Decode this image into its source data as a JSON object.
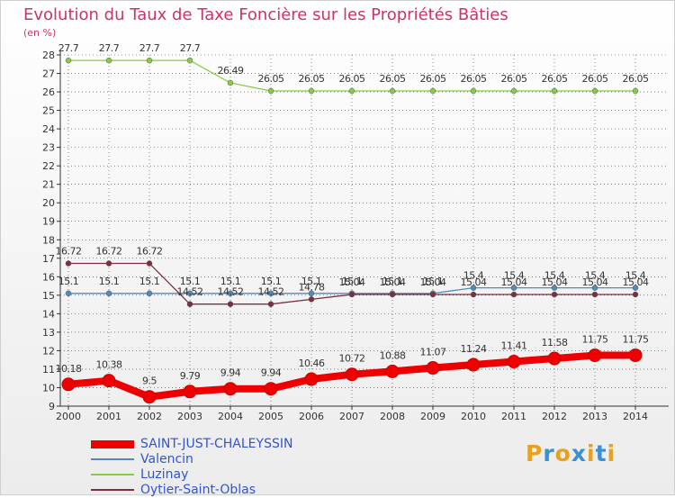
{
  "header": {
    "title": "Evolution du Taux de Taxe Foncière sur les Propriétés Bâties",
    "unit": "(en %)"
  },
  "logo": {
    "letters": [
      "P",
      "r",
      "o",
      "x",
      "i",
      "t",
      "i"
    ]
  },
  "colors": {
    "title": "#cc3366",
    "axis_text": "#333333",
    "grid": "#cc0000",
    "legend_text": "#3355cc",
    "logo_letters": [
      "#e8a020",
      "#3b8fd6",
      "#e8a020",
      "#3b8fd6",
      "#e8a020",
      "#3b8fd6",
      "#e8a020"
    ]
  },
  "chart_data": {
    "type": "line",
    "title": "Evolution du Taux de Taxe Foncière sur les Propriétés Bâties",
    "ylabel": "(en %)",
    "xlabel": "",
    "ylim": [
      9,
      28
    ],
    "yticks": [
      9,
      10,
      11,
      12,
      13,
      14,
      15,
      16,
      17,
      18,
      19,
      20,
      21,
      22,
      23,
      24,
      25,
      26,
      27,
      28
    ],
    "categories": [
      "2000",
      "2001",
      "2002",
      "2003",
      "2004",
      "2005",
      "2006",
      "2007",
      "2008",
      "2009",
      "2010",
      "2011",
      "2012",
      "2013",
      "2014"
    ],
    "legend_position": "bottom-left",
    "series": [
      {
        "name": "SAINT-JUST-CHALEYSSIN",
        "color": "#ee0000",
        "values": [
          10.18,
          10.38,
          9.5,
          9.79,
          9.94,
          9.94,
          10.46,
          10.72,
          10.88,
          11.07,
          11.24,
          11.41,
          11.58,
          11.75,
          11.75
        ],
        "labels": [
          "10.18",
          "10.38",
          "9.5",
          "9.79",
          "9.94",
          "9.94",
          "10.46",
          "10.72",
          "10.88",
          "11.07",
          "11.24",
          "11.41",
          "11.58",
          "11.75",
          "11.75"
        ]
      },
      {
        "name": "Valencin",
        "color": "#4f8bbf",
        "values": [
          15.1,
          15.1,
          15.1,
          15.1,
          15.1,
          15.1,
          15.1,
          15.1,
          15.1,
          15.1,
          15.4,
          15.4,
          15.4,
          15.4,
          15.4
        ],
        "labels": [
          "15.1",
          "15.1",
          "15.1",
          "15.1",
          "15.1",
          "15.1",
          "15.1",
          "15.1",
          "15.1",
          "15.1",
          "15.4",
          "15.4",
          "15.4",
          "15.4",
          "15.4"
        ]
      },
      {
        "name": "Luzinay",
        "color": "#88cc44",
        "values": [
          27.7,
          27.7,
          27.7,
          27.7,
          26.49,
          26.05,
          26.05,
          26.05,
          26.05,
          26.05,
          26.05,
          26.05,
          26.05,
          26.05,
          26.05
        ],
        "labels": [
          "27.7",
          "27.7",
          "27.7",
          "27.7",
          "26.49",
          "26.05",
          "26.05",
          "26.05",
          "26.05",
          "26.05",
          "26.05",
          "26.05",
          "26.05",
          "26.05",
          "26.05"
        ]
      },
      {
        "name": "Oytier-Saint-Oblas",
        "color": "#7a3040",
        "values": [
          16.72,
          16.72,
          16.72,
          14.52,
          14.52,
          14.52,
          14.78,
          15.04,
          15.04,
          15.04,
          15.04,
          15.04,
          15.04,
          15.04,
          15.04
        ],
        "labels": [
          "16.72",
          "16.72",
          "16.72",
          "14.52",
          "14.52",
          "14.52",
          "14.78",
          "15.04",
          "15.04",
          "15.04",
          "15.04",
          "15.04",
          "15.04",
          "15.04",
          "15.04"
        ]
      }
    ]
  }
}
